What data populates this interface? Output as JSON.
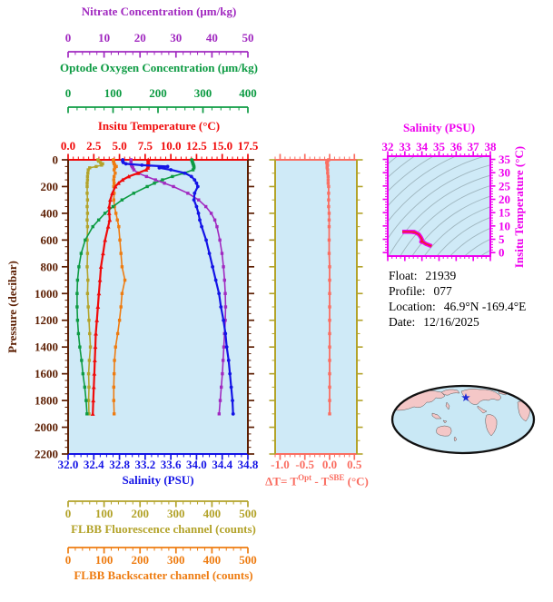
{
  "axes": {
    "nitrate": {
      "title": "Nitrate Concentration (μm/kg)",
      "ticks": [
        "0",
        "10",
        "20",
        "30",
        "40",
        "50"
      ],
      "min": 0,
      "max": 50,
      "minor": 2,
      "color": "#a129c0"
    },
    "oxygen": {
      "title": "Optode Oxygen Concentration (μm/kg)",
      "ticks": [
        "0",
        "100",
        "200",
        "300",
        "400"
      ],
      "min": 0,
      "max": 400,
      "minor": 20,
      "color": "#0d9b43"
    },
    "temperature": {
      "title": "Insitu Temperature (°C)",
      "ticks": [
        "0.0",
        "2.5",
        "5.0",
        "7.5",
        "10.0",
        "12.5",
        "15.0",
        "17.5"
      ],
      "min": 0,
      "max": 17.5,
      "minor": 0.5,
      "color": "#f00a0a"
    },
    "salinity": {
      "title": "Salinity (PSU)",
      "ticks": [
        "32.0",
        "32.4",
        "32.8",
        "33.2",
        "33.6",
        "34.0",
        "34.4",
        "34.8"
      ],
      "min": 32,
      "max": 34.8,
      "minor": 0.1,
      "color": "#1414e6"
    },
    "fluor": {
      "title": "FLBB Fluorescence channel (counts)",
      "ticks": [
        "0",
        "100",
        "200",
        "300",
        "400",
        "500"
      ],
      "min": 0,
      "max": 500,
      "minor": 20,
      "color": "#b3a32a"
    },
    "backscatter": {
      "title": "FLBB Backscatter channel (counts)",
      "ticks": [
        "0",
        "100",
        "200",
        "300",
        "400",
        "500"
      ],
      "min": 0,
      "max": 500,
      "minor": 20,
      "color": "#ee7c11"
    },
    "pressure": {
      "title": "Pressure (decibar)",
      "ticks": [
        "0",
        "200",
        "400",
        "600",
        "800",
        "1000",
        "1200",
        "1400",
        "1600",
        "1800",
        "2000",
        "2200"
      ],
      "min": 0,
      "max": 2200,
      "minor": 50,
      "color": "#5c1e02"
    },
    "dt": {
      "t1": "ΔT= T",
      "t2": "Opt",
      "t3": " - T",
      "t4": "SBE",
      "t5": " (°C)",
      "ticks": [
        "-1.0",
        "-0.5",
        "0.0",
        "0.5"
      ],
      "min": -1.1,
      "max": 0.55,
      "minor": 0.1,
      "color": "#fa6e62",
      "border_color": "#b3a32a"
    },
    "ts": {
      "title": "Salinity (PSU)",
      "ylabel": "Insitu Temperature (°C)",
      "xticks": [
        "32",
        "33",
        "34",
        "35",
        "36",
        "37",
        "38"
      ],
      "yticks": [
        "0",
        "5",
        "10",
        "15",
        "20",
        "25",
        "30",
        "35"
      ],
      "xmin": 32,
      "xmax": 38,
      "xminor": 0.25,
      "ymin": -1.3,
      "ymax": 36.2,
      "yminor": 1,
      "color": "#ee00ee",
      "contour_color": "#9fb6bf",
      "curve_outline": "#ee00ee",
      "curve_core": "#f02020"
    }
  },
  "info": {
    "rows": [
      {
        "label": "Float:",
        "value": "21939"
      },
      {
        "label": "Profile:",
        "value": "077"
      },
      {
        "label": "Location:",
        "value": "46.9°N  -169.4°E"
      },
      {
        "label": "Date:",
        "value": "12/16/2025"
      }
    ]
  },
  "colors": {
    "plot_background": "#cfeaf7",
    "frame": "#5c1e02",
    "map_ocean": "#c9e8f5",
    "map_land": "#f4c7c7",
    "map_outline": "#111111",
    "map_star": "#1f2bd6"
  },
  "chart_data": {
    "type": "line",
    "title": "Float profile plot: multiple ocean variables vs pressure, plus ΔT panel, T-S diagram and location map",
    "ylabel": "Pressure (decibar)",
    "ylim": [
      0,
      2200
    ],
    "y_inverted": true,
    "pressures": [
      0,
      10,
      20,
      30,
      40,
      50,
      60,
      75,
      100,
      125,
      150,
      175,
      200,
      250,
      300,
      350,
      400,
      450,
      500,
      600,
      700,
      800,
      900,
      1000,
      1100,
      1200,
      1300,
      1400,
      1500,
      1600,
      1700,
      1800,
      1900
    ],
    "series": [
      {
        "name": "Insitu Temperature",
        "units": "°C",
        "color": "#f00a0a",
        "marker": "triangle",
        "axis": {
          "min": 0,
          "max": 17.5
        },
        "values": [
          7.8,
          7.8,
          7.8,
          7.8,
          7.8,
          7.78,
          7.75,
          7.6,
          6.8,
          5.9,
          5.3,
          4.9,
          4.6,
          4.3,
          4.1,
          4.0,
          4.0,
          4.05,
          3.9,
          3.6,
          3.4,
          3.2,
          3.1,
          3.0,
          2.9,
          2.8,
          2.7,
          2.65,
          2.6,
          2.55,
          2.5,
          2.45,
          2.4
        ]
      },
      {
        "name": "Salinity",
        "units": "PSU",
        "color": "#1414e6",
        "marker": "circle",
        "axis": {
          "min": 32,
          "max": 34.8
        },
        "values": [
          32.85,
          32.85,
          32.86,
          32.9,
          33.15,
          33.55,
          33.42,
          33.6,
          33.82,
          33.92,
          33.97,
          34.0,
          34.02,
          33.97,
          33.96,
          34.0,
          34.03,
          34.05,
          34.08,
          34.15,
          34.2,
          34.25,
          34.3,
          34.35,
          34.38,
          34.42,
          34.45,
          34.47,
          34.5,
          34.52,
          34.54,
          34.56,
          34.57
        ]
      },
      {
        "name": "Optode Oxygen Concentration",
        "units": "μm/kg",
        "color": "#0d9b43",
        "marker": "square",
        "axis": {
          "min": 0,
          "max": 400
        },
        "values": [
          275,
          276,
          277,
          278,
          279,
          280,
          280,
          278,
          258,
          232,
          210,
          192,
          176,
          146,
          120,
          100,
          82,
          68,
          55,
          38,
          29,
          24,
          21,
          20,
          20,
          21,
          23,
          26,
          30,
          33,
          37,
          40,
          42
        ]
      },
      {
        "name": "Nitrate Concentration",
        "units": "μm/kg",
        "color": "#a129c0",
        "marker": "square",
        "axis": {
          "min": 0,
          "max": 50
        },
        "values": [
          17.5,
          17.5,
          17.5,
          17.5,
          17.6,
          17.8,
          18.0,
          18.3,
          19.5,
          21.8,
          24.3,
          26.8,
          29.3,
          33.3,
          36.3,
          38.3,
          39.8,
          40.8,
          41.4,
          42.2,
          42.8,
          43.2,
          43.5,
          43.7,
          43.8,
          43.7,
          43.5,
          43.3,
          43.1,
          42.9,
          42.6,
          42.3,
          42.0
        ]
      },
      {
        "name": "FLBB Fluorescence channel",
        "units": "counts",
        "color": "#b3a32a",
        "marker": "square",
        "axis": {
          "min": 0,
          "max": 500
        },
        "values": [
          83,
          85,
          90,
          96,
          93,
          78,
          60,
          56,
          55,
          54,
          54,
          53,
          53,
          53,
          54,
          53,
          54,
          53,
          54,
          53,
          54,
          53,
          55,
          54,
          56,
          58,
          60,
          62,
          59,
          57,
          58,
          57,
          58
        ]
      },
      {
        "name": "FLBB Backscatter channel",
        "units": "counts",
        "color": "#ee7c11",
        "marker": "square",
        "axis": {
          "min": 0,
          "max": 500
        },
        "values": [
          126,
          126,
          127,
          128,
          130,
          134,
          130,
          128,
          131,
          128,
          127,
          128,
          127,
          128,
          127,
          129,
          133,
          137,
          141,
          144,
          147,
          150,
          158,
          150,
          147,
          143,
          138,
          132,
          129,
          128,
          127,
          127,
          128
        ]
      }
    ],
    "delta_t_panel": {
      "name": "ΔT = T(Opt) - T(SBE)",
      "units": "°C",
      "color": "#fa6e62",
      "marker": "square",
      "axis": {
        "min": -1.1,
        "max": 0.55
      },
      "values": [
        -0.02,
        -0.04,
        -0.06,
        -0.05,
        -0.04,
        -0.05,
        -0.05,
        -0.04,
        -0.04,
        -0.03,
        -0.03,
        -0.03,
        -0.02,
        -0.02,
        -0.02,
        -0.02,
        -0.01,
        -0.01,
        -0.01,
        -0.01,
        -0.01,
        0,
        0,
        0,
        0,
        0,
        0,
        0,
        0,
        0,
        0,
        0,
        0
      ]
    },
    "ts_panel": {
      "description": "T-S diagram: salinity series vs temperature series with gray isopycnal-style contour arcs",
      "x_range": [
        32,
        38
      ],
      "y_range": [
        0,
        35
      ]
    },
    "map": {
      "description": "Pacific-centered world map with float position star",
      "star_lat_lon": "46.9N 169.4W"
    }
  }
}
